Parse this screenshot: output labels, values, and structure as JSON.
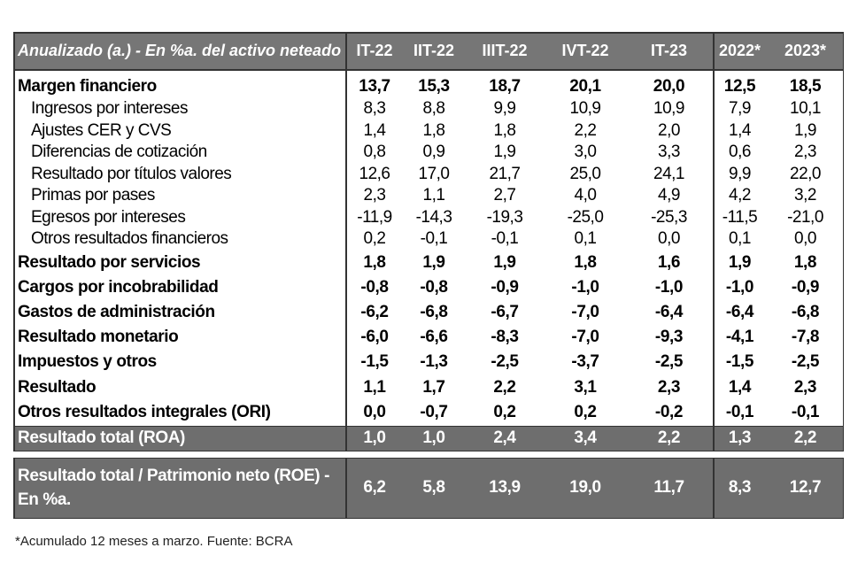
{
  "header": {
    "label": "Anualizado (a.) - En %a. del activo neteado",
    "columns": [
      "IT-22",
      "IIT-22",
      "IIIT-22",
      "IVT-22",
      "IT-23",
      "2022*",
      "2023*"
    ]
  },
  "rows": [
    {
      "label": "Margen financiero",
      "style": "bold",
      "values": [
        "13,7",
        "15,3",
        "18,7",
        "20,1",
        "20,0",
        "12,5",
        "18,5"
      ]
    },
    {
      "label": "Ingresos por intereses",
      "style": "sub",
      "values": [
        "8,3",
        "8,8",
        "9,9",
        "10,9",
        "10,9",
        "7,9",
        "10,1"
      ]
    },
    {
      "label": "Ajustes CER y CVS",
      "style": "sub",
      "values": [
        "1,4",
        "1,8",
        "1,8",
        "2,2",
        "2,0",
        "1,4",
        "1,9"
      ]
    },
    {
      "label": "Diferencias de cotización",
      "style": "sub",
      "values": [
        "0,8",
        "0,9",
        "1,9",
        "3,0",
        "3,3",
        "0,6",
        "2,3"
      ]
    },
    {
      "label": "Resultado por títulos valores",
      "style": "sub",
      "values": [
        "12,6",
        "17,0",
        "21,7",
        "25,0",
        "24,1",
        "9,9",
        "22,0"
      ]
    },
    {
      "label": "Primas por pases",
      "style": "sub",
      "values": [
        "2,3",
        "1,1",
        "2,7",
        "4,0",
        "4,9",
        "4,2",
        "3,2"
      ]
    },
    {
      "label": "Egresos por intereses",
      "style": "sub",
      "values": [
        "-11,9",
        "-14,3",
        "-19,3",
        "-25,0",
        "-25,3",
        "-11,5",
        "-21,0"
      ]
    },
    {
      "label": "Otros resultados financieros",
      "style": "sub",
      "values": [
        "0,2",
        "-0,1",
        "-0,1",
        "0,1",
        "0,0",
        "0,1",
        "0,0"
      ]
    },
    {
      "label": "Resultado por servicios",
      "style": "bold",
      "values": [
        "1,8",
        "1,9",
        "1,9",
        "1,8",
        "1,6",
        "1,9",
        "1,8"
      ]
    },
    {
      "label": "Cargos por incobrabilidad",
      "style": "bold",
      "values": [
        "-0,8",
        "-0,8",
        "-0,9",
        "-1,0",
        "-1,0",
        "-1,0",
        "-0,9"
      ]
    },
    {
      "label": "Gastos de administración",
      "style": "bold",
      "values": [
        "-6,2",
        "-6,8",
        "-6,7",
        "-7,0",
        "-6,4",
        "-6,4",
        "-6,8"
      ]
    },
    {
      "label": "Resultado monetario",
      "style": "bold",
      "values": [
        "-6,0",
        "-6,6",
        "-8,3",
        "-7,0",
        "-9,3",
        "-4,1",
        "-7,8"
      ]
    },
    {
      "label": "Impuestos  y otros",
      "style": "bold",
      "values": [
        "-1,5",
        "-1,3",
        "-2,5",
        "-3,7",
        "-2,5",
        "-1,5",
        "-2,5"
      ]
    },
    {
      "label": "Resultado",
      "style": "bold",
      "values": [
        "1,1",
        "1,7",
        "2,2",
        "3,1",
        "2,3",
        "1,4",
        "2,3"
      ]
    },
    {
      "label": "Otros resultados integrales (ORI)",
      "style": "bold",
      "values": [
        "0,0",
        "-0,7",
        "0,2",
        "0,2",
        "-0,2",
        "-0,1",
        "-0,1"
      ]
    },
    {
      "label": "Resultado total (ROA)",
      "style": "dark",
      "values": [
        "1,0",
        "1,0",
        "2,4",
        "3,4",
        "2,2",
        "1,3",
        "2,2"
      ]
    },
    {
      "label": "Resultado total / Patrimonio neto (ROE) - En %a.",
      "style": "dark roe",
      "values": [
        "6,2",
        "5,8",
        "13,9",
        "19,0",
        "11,7",
        "8,3",
        "12,7"
      ]
    }
  ],
  "footnote": "*Acumulado 12 meses a marzo. Fuente: BCRA",
  "colors": {
    "header_bg": "#767676",
    "total_bg": "#6e6e6e"
  }
}
